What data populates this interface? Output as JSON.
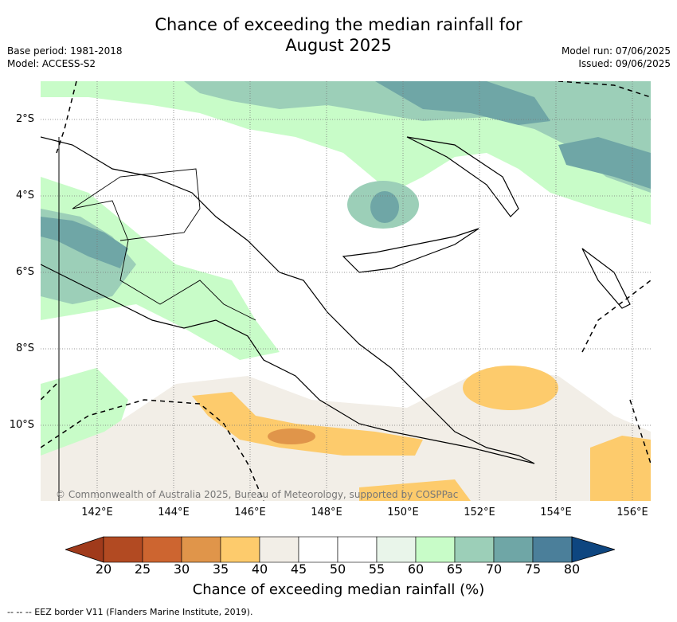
{
  "title_line1": "Chance of exceeding the median rainfall for",
  "title_line2": "August 2025",
  "base_period": "Base period: 1981-2018",
  "model": "Model: ACCESS-S2",
  "model_run": "Model run: 07/06/2025",
  "issued": "Issued: 09/06/2025",
  "copyright": "© Commonwealth of Australia 2025, Bureau of Meteorology, supported by COSPPac",
  "lat_labels": [
    "2°S",
    "4°S",
    "6°S",
    "8°S",
    "10°S"
  ],
  "lon_labels": [
    "142°E",
    "144°E",
    "146°E",
    "148°E",
    "150°E",
    "152°E",
    "154°E",
    "156°E"
  ],
  "colorbar": {
    "label": "Chance of exceeding median rainfall (%)",
    "ticks": [
      "20",
      "25",
      "30",
      "35",
      "40",
      "45",
      "50",
      "55",
      "60",
      "65",
      "70",
      "75",
      "80"
    ],
    "colors": [
      "#b24a22",
      "#cd6530",
      "#e0954a",
      "#fdcb6c",
      "#f2eee7",
      "#ffffff",
      "#ffffff",
      "#e9f5ea",
      "#c8fcc8",
      "#9ccfb8",
      "#6fa6a6",
      "#4b7f9a",
      "#0e4680"
    ],
    "colors_note_low": "#a03a1b"
  },
  "footnote": "-- -- -- EEZ border V11 (Flanders Marine Institute, 2019)."
}
